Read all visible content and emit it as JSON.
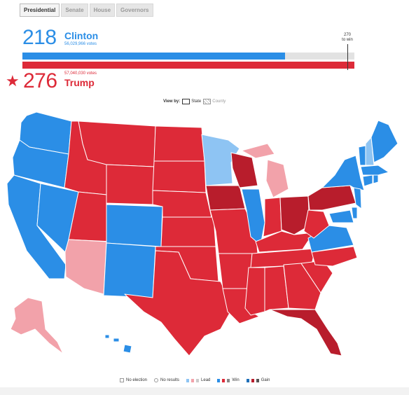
{
  "tabs": [
    {
      "label": "Presidential",
      "active": true
    },
    {
      "label": "Senate",
      "active": false
    },
    {
      "label": "House",
      "active": false
    },
    {
      "label": "Governors",
      "active": false
    }
  ],
  "clinton": {
    "electoral": "218",
    "name": "Clinton",
    "votes": "56,029,966 votes",
    "color": "#2b8ee6",
    "electoral_value": 218
  },
  "trump": {
    "electoral": "276",
    "name": "Trump",
    "votes": "57,040,030 votes",
    "color": "#dd2a38",
    "electoral_value": 276
  },
  "win_threshold": {
    "line1": "270",
    "line2": "to win",
    "value": 270
  },
  "view_by": {
    "label": "View by:",
    "state": "State",
    "county": "County"
  },
  "legend": {
    "no_election": "No election",
    "no_results": "No results",
    "lead": "Lead",
    "win": "Win",
    "gain": "Gain"
  },
  "colors": {
    "dem_win": "#2b8ee6",
    "dem_lead": "#8ec4f3",
    "rep_win": "#dd2a38",
    "rep_lead": "#f2a2aa",
    "rep_gain": "#b81d2c"
  }
}
